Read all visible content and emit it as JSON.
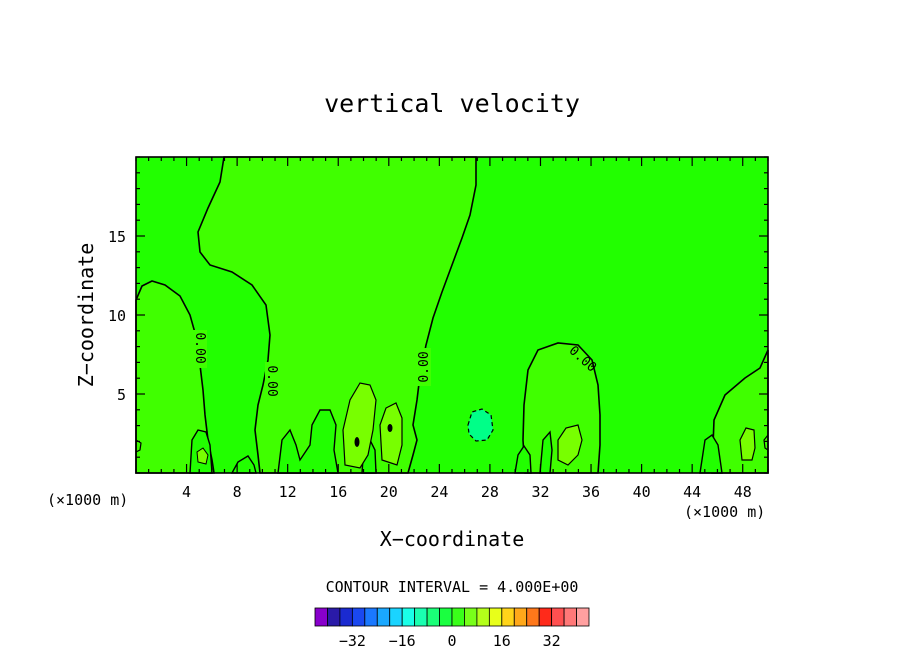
{
  "chart_data": {
    "type": "contour",
    "title": "vertical velocity",
    "xlabel": "X−coordinate",
    "ylabel": "Z−coordinate",
    "x_units_left": "(×1000 m)",
    "x_units_right": "(×1000 m)",
    "xlim": [
      0,
      50
    ],
    "ylim": [
      0,
      20
    ],
    "x_ticks": [
      4,
      8,
      12,
      16,
      20,
      24,
      28,
      32,
      36,
      40,
      44,
      48
    ],
    "x_tick_labels": [
      "4",
      "8",
      "12",
      "16",
      "20",
      "24",
      "28",
      "32",
      "36",
      "40",
      "44",
      "48"
    ],
    "y_ticks": [
      5,
      10,
      15
    ],
    "y_tick_labels": [
      "5",
      "10",
      "15"
    ],
    "contour_labels": [
      "0.00",
      "0.00",
      "0.00",
      "0.00"
    ],
    "contour_interval_text": "CONTOUR INTERVAL = 4.000E+00",
    "colorbar": {
      "colors": [
        "#8800cc",
        "#2a1aa8",
        "#1a2ad0",
        "#1a48f0",
        "#1a78ff",
        "#1aa8ff",
        "#1ad4ff",
        "#1affe8",
        "#1affb0",
        "#1aff78",
        "#1aff40",
        "#3aff1a",
        "#78ff1a",
        "#b4ff1a",
        "#e8ff1a",
        "#ffd41a",
        "#ffa81a",
        "#ff781a",
        "#ff2a1a",
        "#ff5050",
        "#ff7878",
        "#ffa0a0"
      ],
      "tick_labels": [
        "−32",
        "−16",
        "0",
        "16",
        "32"
      ],
      "tick_values": [
        -32,
        -16,
        0,
        16,
        32
      ]
    }
  },
  "colors": {
    "background_green": "#22ff00",
    "positive_green": "#40ff00",
    "weak_positive": "#6cff00",
    "strong_positive": "#a4ff00",
    "negative_teal": "#00ff88"
  }
}
